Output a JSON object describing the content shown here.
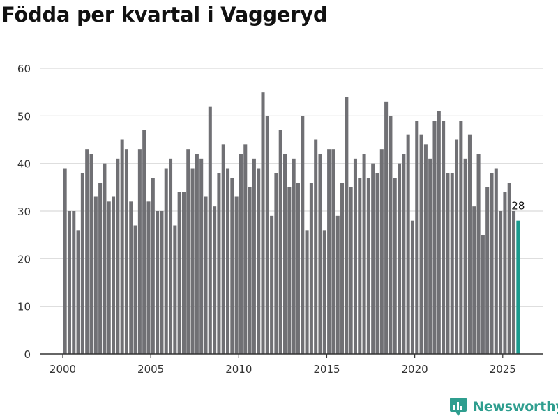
{
  "chart_data": {
    "type": "bar",
    "title": "Födda per kvartal i Vaggeryd",
    "xlabel": "",
    "ylabel": "",
    "ylim": [
      0,
      60
    ],
    "yticks": [
      0,
      10,
      20,
      30,
      40,
      50,
      60
    ],
    "xticks": [
      "2000",
      "2005",
      "2010",
      "2015",
      "2020",
      "2025"
    ],
    "start_year": 2000,
    "periods_per_year": 4,
    "values": [
      39,
      30,
      30,
      26,
      38,
      43,
      42,
      33,
      36,
      40,
      32,
      33,
      41,
      45,
      43,
      32,
      27,
      43,
      47,
      32,
      37,
      30,
      30,
      39,
      41,
      27,
      34,
      34,
      43,
      39,
      42,
      41,
      33,
      52,
      31,
      38,
      44,
      39,
      37,
      33,
      42,
      44,
      35,
      41,
      39,
      55,
      50,
      29,
      38,
      47,
      42,
      35,
      41,
      36,
      50,
      26,
      36,
      45,
      42,
      26,
      43,
      43,
      29,
      36,
      54,
      35,
      41,
      37,
      42,
      37,
      40,
      38,
      43,
      53,
      50,
      37,
      40,
      42,
      46,
      28,
      49,
      46,
      44,
      41,
      49,
      51,
      49,
      38,
      38,
      45,
      49,
      41,
      46,
      31,
      42,
      25,
      35,
      38,
      39,
      30,
      34,
      36,
      30,
      28
    ],
    "highlight_label": "28",
    "colors": {
      "bar": "#707074",
      "highlight": "#1a9a8e",
      "grid": "#d9d9d9",
      "axis": "#333333",
      "tick_text": "#333333"
    }
  },
  "branding": {
    "name": "Newsworthy",
    "icon": "newsworthy-logo-icon",
    "color": "#2f9e8f"
  }
}
